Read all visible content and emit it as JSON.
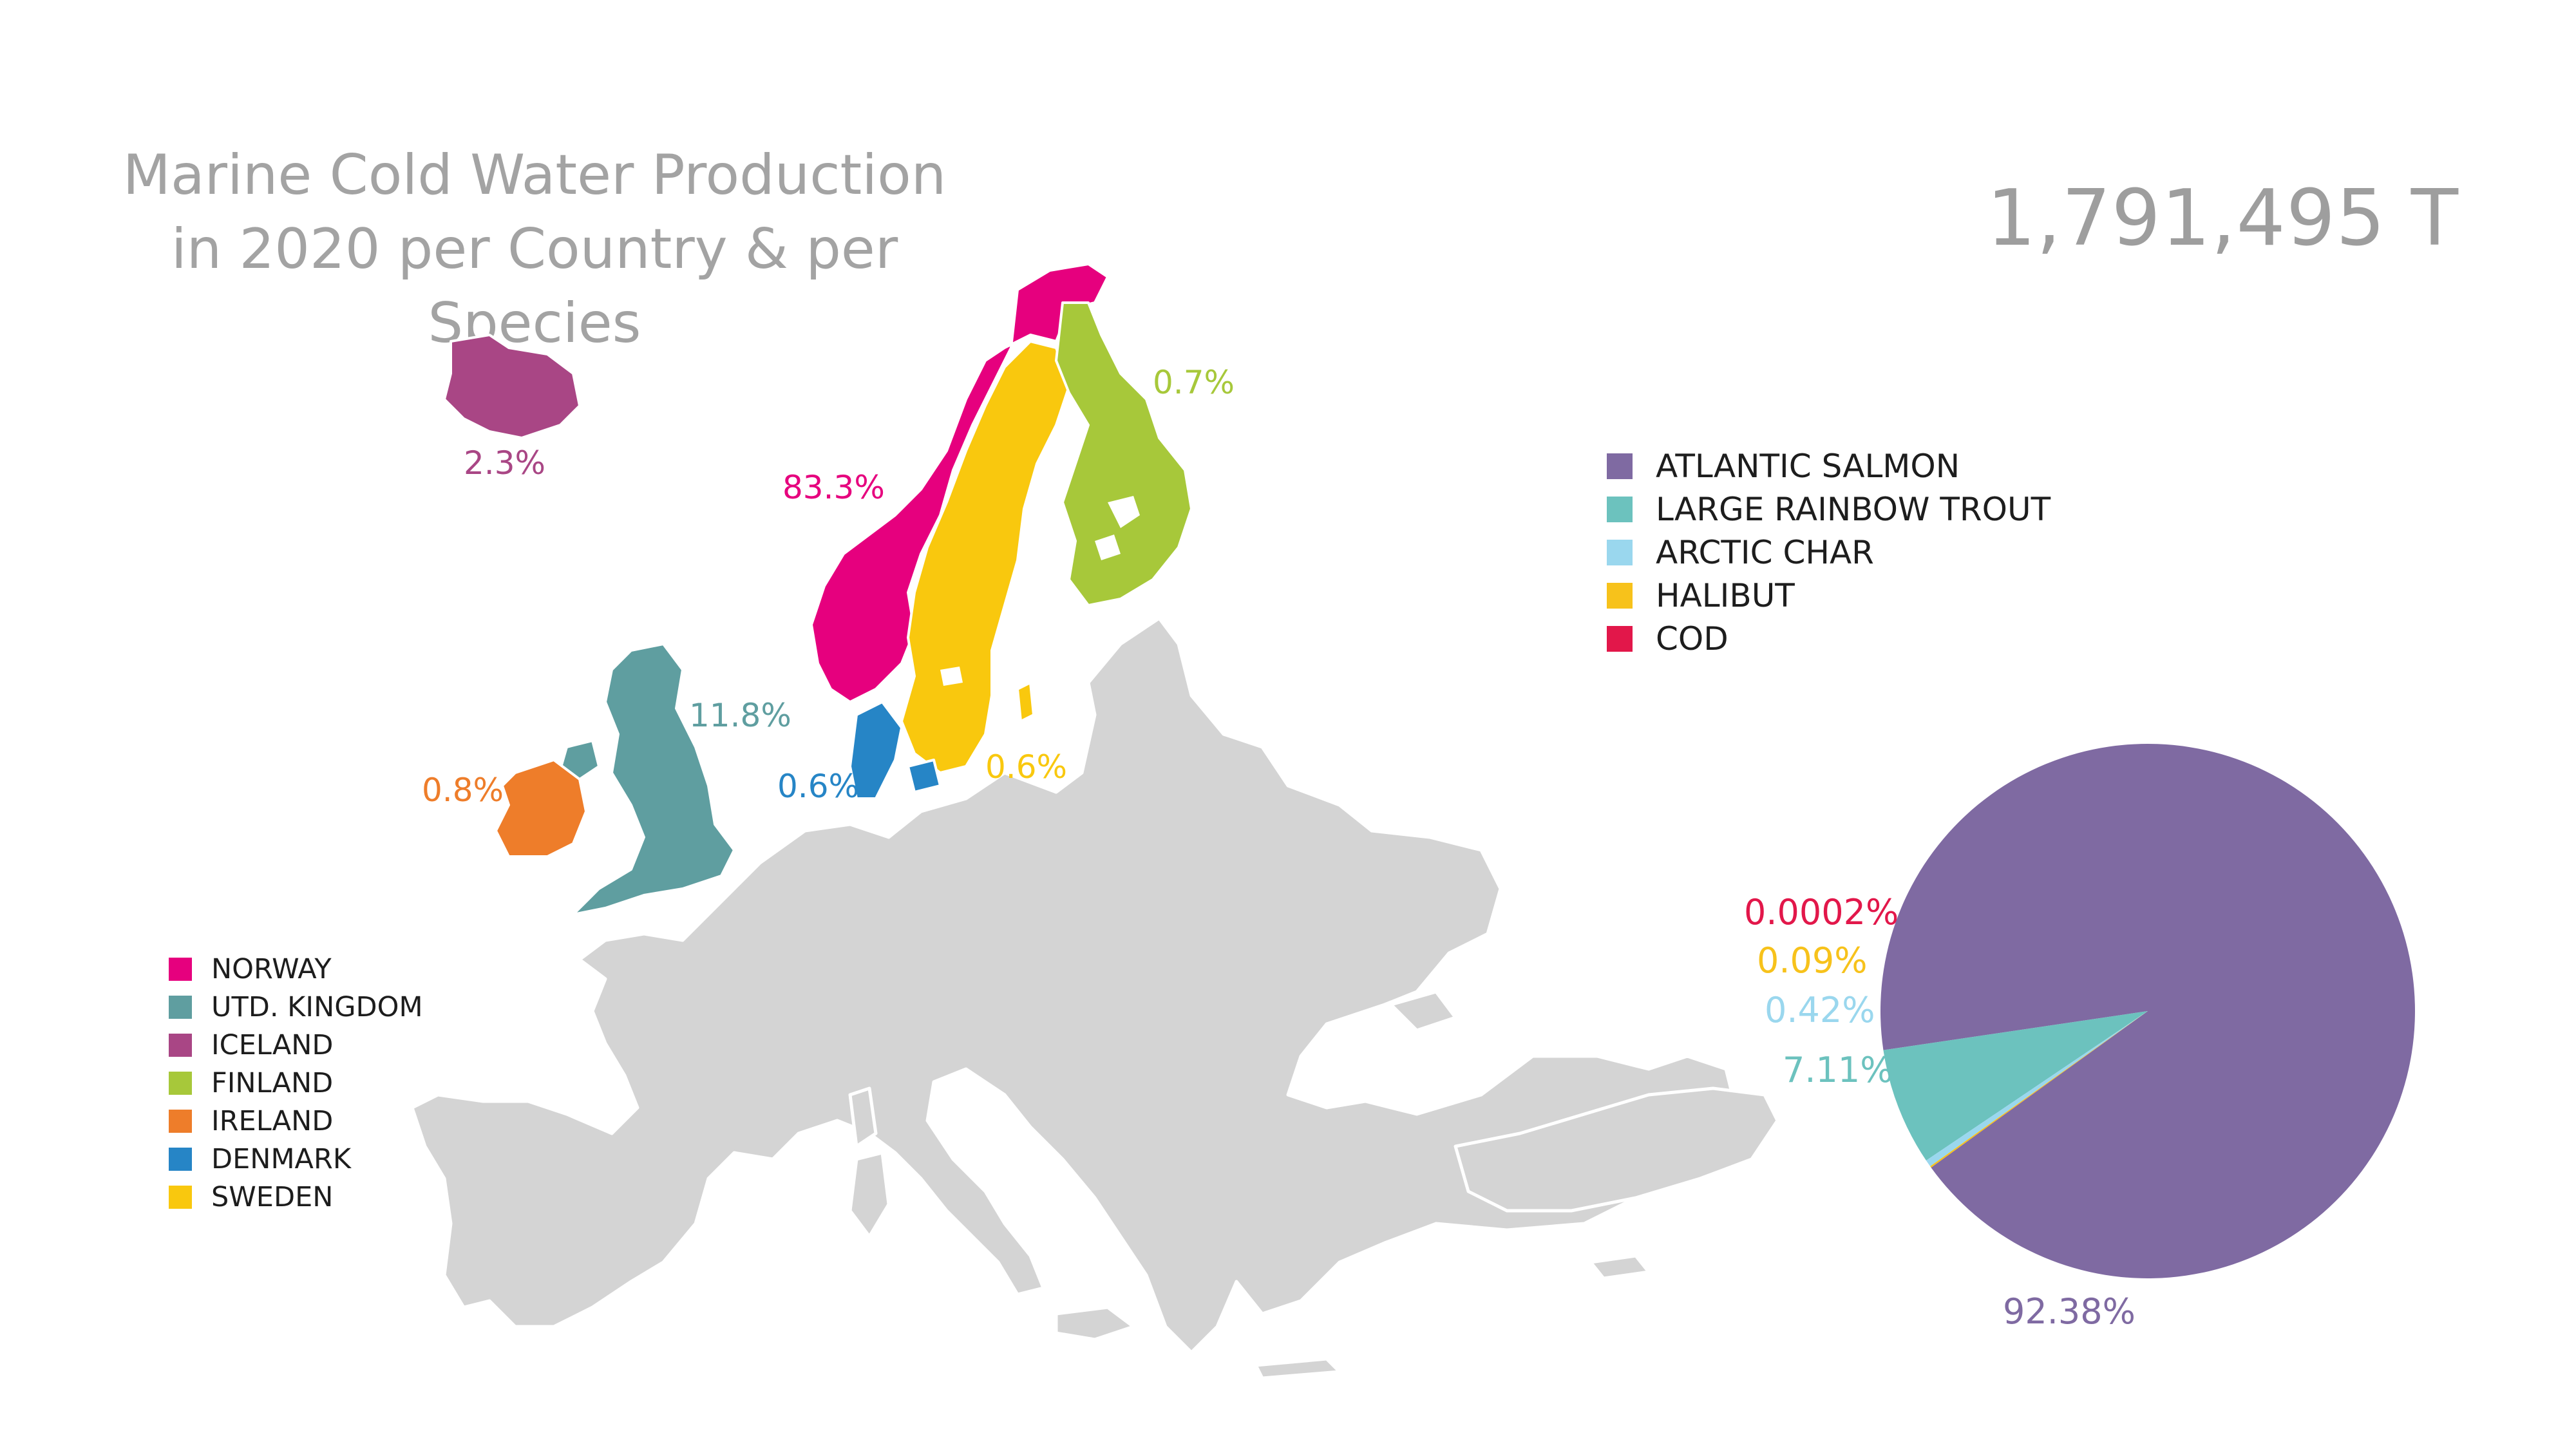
{
  "title": {
    "line1": "Marine Cold Water Production",
    "line2": "in 2020 per Country & per Species"
  },
  "total": "1,791,495 T",
  "countries": [
    {
      "name": "NORWAY",
      "share": "83.3%",
      "color": "#e6007e"
    },
    {
      "name": "UTD. KINGDOM",
      "share": "11.8%",
      "color": "#5f9ea0"
    },
    {
      "name": "ICELAND",
      "share": "2.3%",
      "color": "#a94685"
    },
    {
      "name": "FINLAND",
      "share": "0.7%",
      "color": "#a7c83a"
    },
    {
      "name": "IRELAND",
      "share": "0.8%",
      "color": "#ee7d2a"
    },
    {
      "name": "DENMARK",
      "share": "0.6%",
      "color": "#2685c6"
    },
    {
      "name": "SWEDEN",
      "share": "0.6%",
      "color": "#f9c80e"
    }
  ],
  "map_colors": {
    "other_countries": "#d4d4d4",
    "borders": "#ffffff"
  },
  "chart_data": {
    "type": "pie",
    "title": "",
    "slices": [
      {
        "label": "ATLANTIC SALMON",
        "value": 92.38,
        "display": "92.38%",
        "color": "#7f6aa2"
      },
      {
        "label": "LARGE RAINBOW TROUT",
        "value": 7.11,
        "display": "7.11%",
        "color": "#6cc2be"
      },
      {
        "label": "ARCTIC CHAR",
        "value": 0.42,
        "display": "0.42%",
        "color": "#9ad7ee"
      },
      {
        "label": "HALIBUT",
        "value": 0.09,
        "display": "0.09%",
        "color": "#f7c21b"
      },
      {
        "label": "COD",
        "value": 0.0002,
        "display": "0.0002%",
        "color": "#e2174a"
      }
    ],
    "legend_position": "top"
  }
}
